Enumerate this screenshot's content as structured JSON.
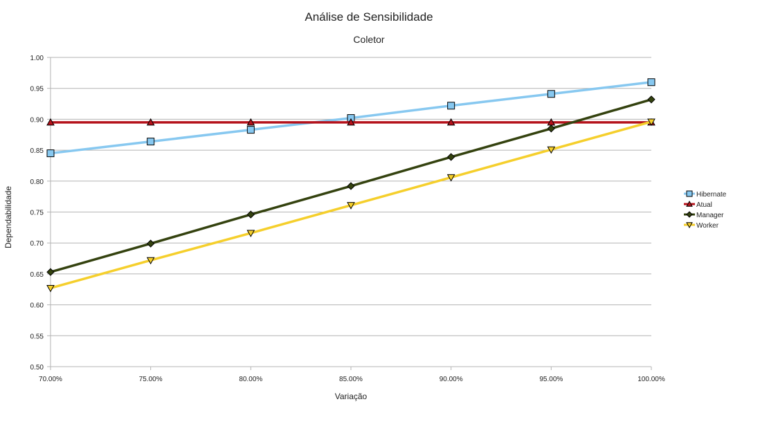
{
  "chart_data": {
    "type": "line",
    "title": "Análise de Sensibilidade",
    "subtitle": "Coletor",
    "xlabel": "Variação",
    "ylabel": "Dependabilidade",
    "x": [
      "70.00%",
      "75.00%",
      "80.00%",
      "85.00%",
      "90.00%",
      "95.00%",
      "100.00%"
    ],
    "ylim": [
      0.5,
      1.0
    ],
    "yticks": [
      "0.50",
      "0.55",
      "0.60",
      "0.65",
      "0.70",
      "0.75",
      "0.80",
      "0.85",
      "0.90",
      "0.95",
      "1.00"
    ],
    "grid": true,
    "legend_position": "right",
    "series": [
      {
        "name": "Hibernate",
        "color": "#87c8f0",
        "marker": "square",
        "values": [
          0.845,
          0.864,
          0.883,
          0.902,
          0.922,
          0.941,
          0.96
        ]
      },
      {
        "name": "Atual",
        "color": "#b5121b",
        "marker": "triangle-up",
        "values": [
          0.895,
          0.895,
          0.895,
          0.895,
          0.895,
          0.895,
          0.895
        ]
      },
      {
        "name": "Manager",
        "color": "#34420f",
        "marker": "diamond",
        "values": [
          0.653,
          0.699,
          0.746,
          0.792,
          0.839,
          0.885,
          0.932
        ]
      },
      {
        "name": "Worker",
        "color": "#f5cf2c",
        "marker": "triangle-down",
        "values": [
          0.627,
          0.672,
          0.716,
          0.761,
          0.806,
          0.851,
          0.896
        ]
      }
    ]
  }
}
